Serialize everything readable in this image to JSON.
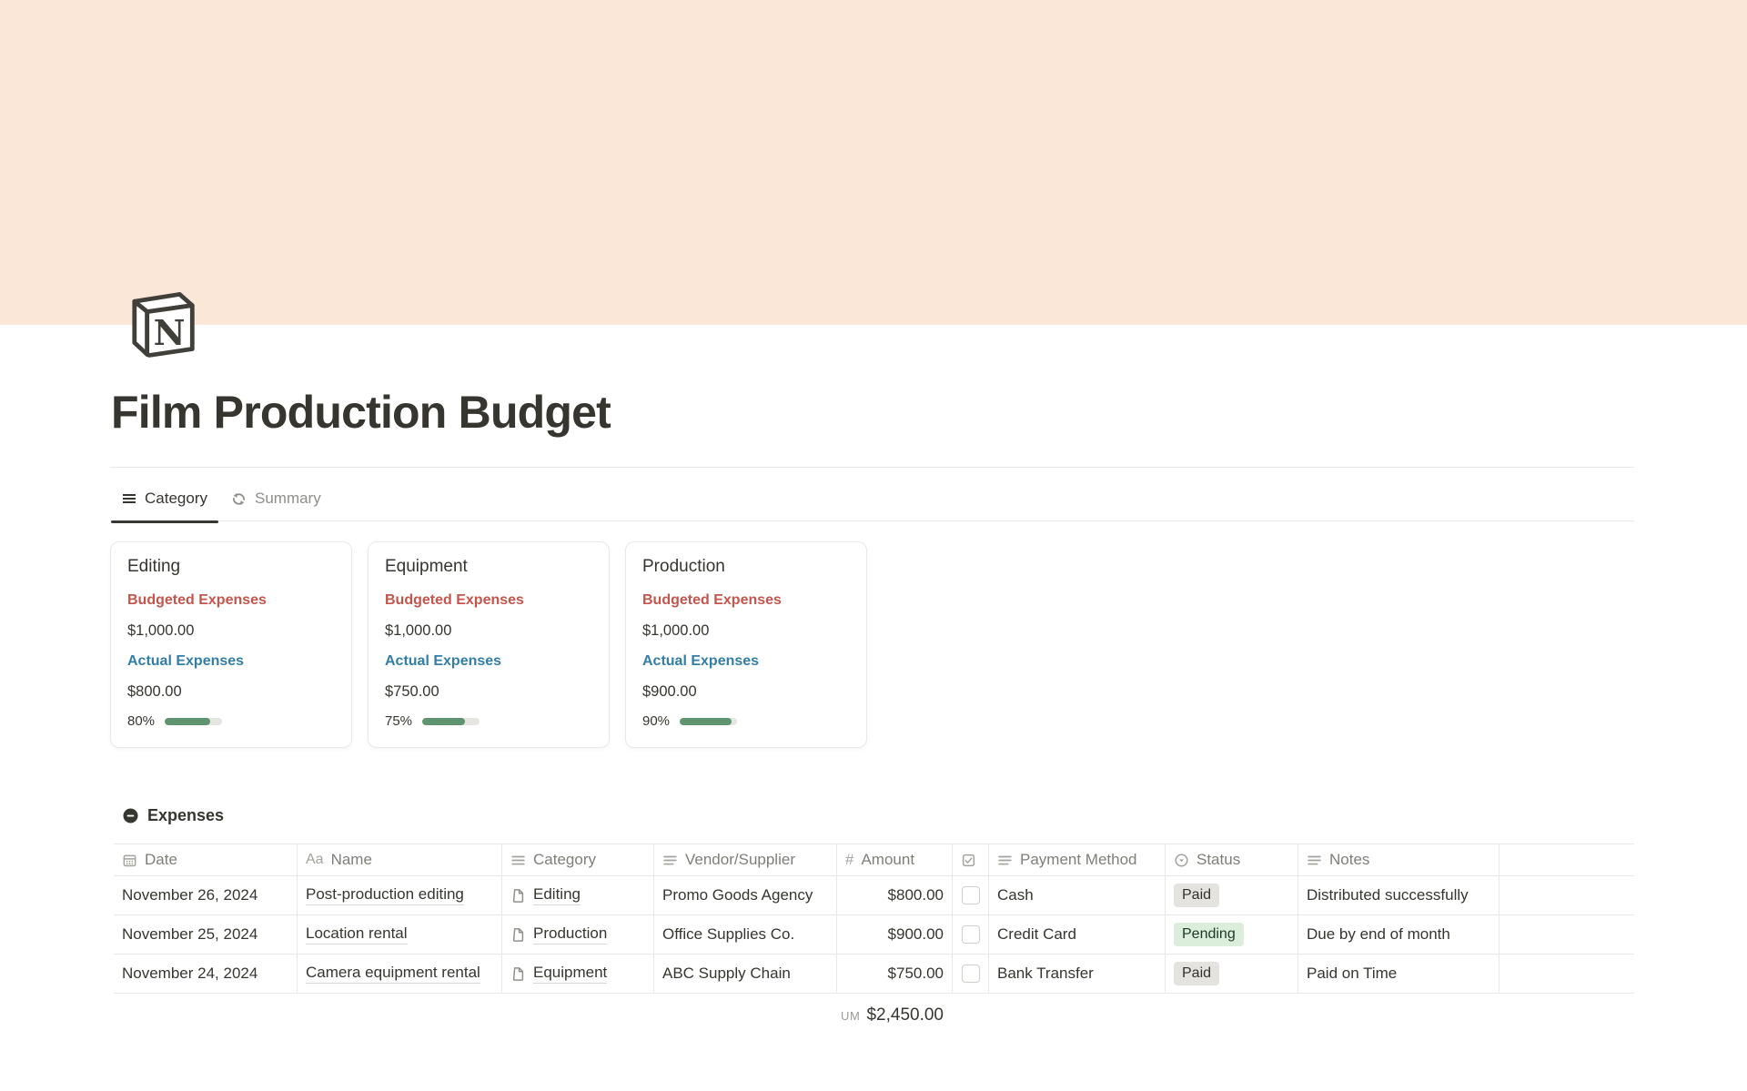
{
  "page": {
    "title": "Film Production Budget"
  },
  "cover": {
    "color": "#fbe7d7"
  },
  "view_tabs": {
    "category": {
      "label": "Category"
    },
    "summary": {
      "label": "Summary"
    }
  },
  "category_cards": [
    {
      "title": "Editing",
      "budgeted_label": "Budgeted Expenses",
      "budgeted_value": "$1,000.00",
      "actual_label": "Actual Expenses",
      "actual_value": "$800.00",
      "percent_label": "80%",
      "percent": 80
    },
    {
      "title": "Equipment",
      "budgeted_label": "Budgeted Expenses",
      "budgeted_value": "$1,000.00",
      "actual_label": "Actual Expenses",
      "actual_value": "$750.00",
      "percent_label": "75%",
      "percent": 75
    },
    {
      "title": "Production",
      "budgeted_label": "Budgeted Expenses",
      "budgeted_value": "$1,000.00",
      "actual_label": "Actual Expenses",
      "actual_value": "$900.00",
      "percent_label": "90%",
      "percent": 90
    }
  ],
  "expenses": {
    "title": "Expenses",
    "header": {
      "date": "Date",
      "name": "Name",
      "category": "Category",
      "vendor": "Vendor/Supplier",
      "amount": "Amount",
      "payment": "Payment Method",
      "status": "Status",
      "notes": "Notes"
    },
    "icons": {
      "name_icon_text": "Aa",
      "amount_icon_text": "#"
    },
    "rows": [
      {
        "date": "November 26, 2024",
        "name": "Post-production editing",
        "category": "Editing",
        "vendor": "Promo Goods Agency",
        "amount": "$800.00",
        "payment": "Cash",
        "status": "Paid",
        "status_color": "gray",
        "notes": "Distributed successfully"
      },
      {
        "date": "November 25, 2024",
        "name": "Location rental",
        "category": "Production",
        "vendor": "Office Supplies Co.",
        "amount": "$900.00",
        "payment": "Credit Card",
        "status": "Pending",
        "status_color": "green",
        "notes": "Due by end of month"
      },
      {
        "date": "November 24, 2024",
        "name": "Camera equipment rental",
        "category": "Equipment",
        "vendor": "ABC Supply Chain",
        "amount": "$750.00",
        "payment": "Bank Transfer",
        "status": "Paid",
        "status_color": "gray",
        "notes": "Paid on Time"
      }
    ],
    "sum": {
      "label": "UM",
      "value": "$2,450.00"
    }
  },
  "colors": {
    "banner": "#fbe7d7",
    "budgeted_red": "#c4554d",
    "actual_blue": "#337ea9",
    "progress_green": "#5e9470",
    "badge_gray_bg": "#e4e3e0",
    "badge_gray_text": "#32302c",
    "badge_green_bg": "#dbeddb",
    "badge_green_text": "#1c3829"
  }
}
